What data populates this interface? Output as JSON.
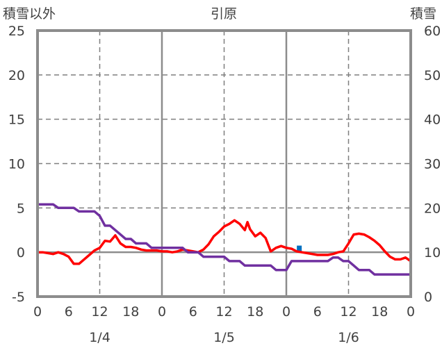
{
  "chart_data": {
    "type": "line",
    "title": "引原",
    "left_axis_title": "積雪以外",
    "right_axis_title": "積雪",
    "y_left": {
      "min": -5,
      "max": 25,
      "ticks": [
        -5,
        0,
        5,
        10,
        15,
        20,
        25
      ]
    },
    "y_right": {
      "min": 0,
      "max": 60,
      "ticks": [
        0,
        10,
        20,
        30,
        40,
        50,
        60
      ]
    },
    "x": {
      "min": 0,
      "max": 72,
      "tick_hours": [
        0,
        6,
        12,
        18,
        24,
        30,
        36,
        42,
        48,
        54,
        60,
        66,
        72
      ],
      "tick_labels": [
        "0",
        "6",
        "12",
        "18",
        "0",
        "6",
        "12",
        "18",
        "0",
        "6",
        "12",
        "18",
        "0"
      ]
    },
    "dates": [
      {
        "label": "1/4",
        "hour": 12
      },
      {
        "label": "1/5",
        "hour": 36
      },
      {
        "label": "1/6",
        "hour": 60
      }
    ],
    "grid": {
      "dashed_hours": [
        12,
        36,
        60
      ],
      "solid_hours": [
        24,
        48
      ],
      "dashed_y": [
        5,
        10,
        15,
        20
      ],
      "zero_line": true
    },
    "series": [
      {
        "axis": "left",
        "color": "#ff0000",
        "points": [
          [
            0,
            0
          ],
          [
            1,
            0
          ],
          [
            2,
            -0.1
          ],
          [
            3,
            -0.2
          ],
          [
            4,
            0
          ],
          [
            5,
            -0.2
          ],
          [
            6,
            -0.5
          ],
          [
            7,
            -1.3
          ],
          [
            8,
            -1.3
          ],
          [
            9,
            -0.8
          ],
          [
            10,
            -0.3
          ],
          [
            11,
            0.2
          ],
          [
            12,
            0.5
          ],
          [
            13,
            1.3
          ],
          [
            14,
            1.2
          ],
          [
            15,
            1.9
          ],
          [
            16,
            1.0
          ],
          [
            17,
            0.6
          ],
          [
            18,
            0.6
          ],
          [
            19,
            0.5
          ],
          [
            20,
            0.3
          ],
          [
            21,
            0.2
          ],
          [
            22,
            0.2
          ],
          [
            23,
            0.2
          ],
          [
            24,
            0.1
          ],
          [
            25,
            0.1
          ],
          [
            26,
            0
          ],
          [
            27,
            0.1
          ],
          [
            28,
            0.3
          ],
          [
            29,
            0.2
          ],
          [
            30,
            0.1
          ],
          [
            31,
            0
          ],
          [
            32,
            0.3
          ],
          [
            33,
            0.9
          ],
          [
            34,
            1.8
          ],
          [
            35,
            2.3
          ],
          [
            36,
            2.9
          ],
          [
            37,
            3.2
          ],
          [
            38,
            3.6
          ],
          [
            39,
            3.2
          ],
          [
            40,
            2.5
          ],
          [
            40.5,
            3.4
          ],
          [
            41,
            2.6
          ],
          [
            42,
            1.8
          ],
          [
            43,
            2.2
          ],
          [
            44,
            1.6
          ],
          [
            45,
            0.1
          ],
          [
            46,
            0.5
          ],
          [
            47,
            0.7
          ],
          [
            48,
            0.5
          ],
          [
            49,
            0.4
          ],
          [
            50,
            0.1
          ],
          [
            51,
            0
          ],
          [
            52,
            -0.1
          ],
          [
            53,
            -0.2
          ],
          [
            54,
            -0.3
          ],
          [
            55,
            -0.3
          ],
          [
            56,
            -0.3
          ],
          [
            57,
            -0.2
          ],
          [
            58,
            0
          ],
          [
            59,
            0.1
          ],
          [
            60,
            1.0
          ],
          [
            61,
            2.0
          ],
          [
            62,
            2.1
          ],
          [
            63,
            2.0
          ],
          [
            64,
            1.7
          ],
          [
            65,
            1.3
          ],
          [
            66,
            0.8
          ],
          [
            67,
            0.1
          ],
          [
            68,
            -0.5
          ],
          [
            69,
            -0.8
          ],
          [
            70,
            -0.8
          ],
          [
            71,
            -0.6
          ],
          [
            72,
            -1.0
          ]
        ]
      },
      {
        "axis": "left",
        "color": "#7030a0",
        "points": [
          [
            0,
            5.4
          ],
          [
            1,
            5.4
          ],
          [
            2,
            5.4
          ],
          [
            3,
            5.4
          ],
          [
            4,
            5.0
          ],
          [
            5,
            5.0
          ],
          [
            6,
            5.0
          ],
          [
            7,
            5.0
          ],
          [
            8,
            4.6
          ],
          [
            9,
            4.6
          ],
          [
            10,
            4.6
          ],
          [
            11,
            4.6
          ],
          [
            12,
            4.1
          ],
          [
            13,
            3.0
          ],
          [
            14,
            3.0
          ],
          [
            15,
            2.5
          ],
          [
            16,
            2.0
          ],
          [
            17,
            1.5
          ],
          [
            18,
            1.5
          ],
          [
            19,
            1.0
          ],
          [
            20,
            1.0
          ],
          [
            21,
            1.0
          ],
          [
            22,
            0.5
          ],
          [
            23,
            0.5
          ],
          [
            24,
            0.5
          ],
          [
            25,
            0.5
          ],
          [
            26,
            0.5
          ],
          [
            27,
            0.5
          ],
          [
            28,
            0.5
          ],
          [
            29,
            0
          ],
          [
            30,
            0
          ],
          [
            31,
            0
          ],
          [
            32,
            -0.5
          ],
          [
            33,
            -0.5
          ],
          [
            34,
            -0.5
          ],
          [
            35,
            -0.5
          ],
          [
            36,
            -0.5
          ],
          [
            37,
            -1.0
          ],
          [
            38,
            -1.0
          ],
          [
            39,
            -1.0
          ],
          [
            40,
            -1.5
          ],
          [
            41,
            -1.5
          ],
          [
            42,
            -1.5
          ],
          [
            43,
            -1.5
          ],
          [
            44,
            -1.5
          ],
          [
            45,
            -1.5
          ],
          [
            46,
            -2.0
          ],
          [
            47,
            -2.0
          ],
          [
            48,
            -2.0
          ],
          [
            49,
            -1.0
          ],
          [
            50,
            -1.0
          ],
          [
            51,
            -1.0
          ],
          [
            52,
            -1.0
          ],
          [
            53,
            -1.0
          ],
          [
            54,
            -1.0
          ],
          [
            55,
            -1.0
          ],
          [
            56,
            -1.0
          ],
          [
            57,
            -0.6
          ],
          [
            58,
            -0.6
          ],
          [
            59,
            -1.0
          ],
          [
            60,
            -1.0
          ],
          [
            61,
            -1.5
          ],
          [
            62,
            -2.0
          ],
          [
            63,
            -2.0
          ],
          [
            64,
            -2.0
          ],
          [
            65,
            -2.5
          ],
          [
            66,
            -2.5
          ],
          [
            67,
            -2.5
          ],
          [
            68,
            -2.5
          ],
          [
            69,
            -2.5
          ],
          [
            70,
            -2.5
          ],
          [
            71,
            -2.5
          ],
          [
            72,
            -2.5
          ]
        ]
      }
    ],
    "bars": [
      {
        "axis": "right",
        "color": "#0070c0",
        "hour": 50.5,
        "value": 11.5
      }
    ]
  }
}
